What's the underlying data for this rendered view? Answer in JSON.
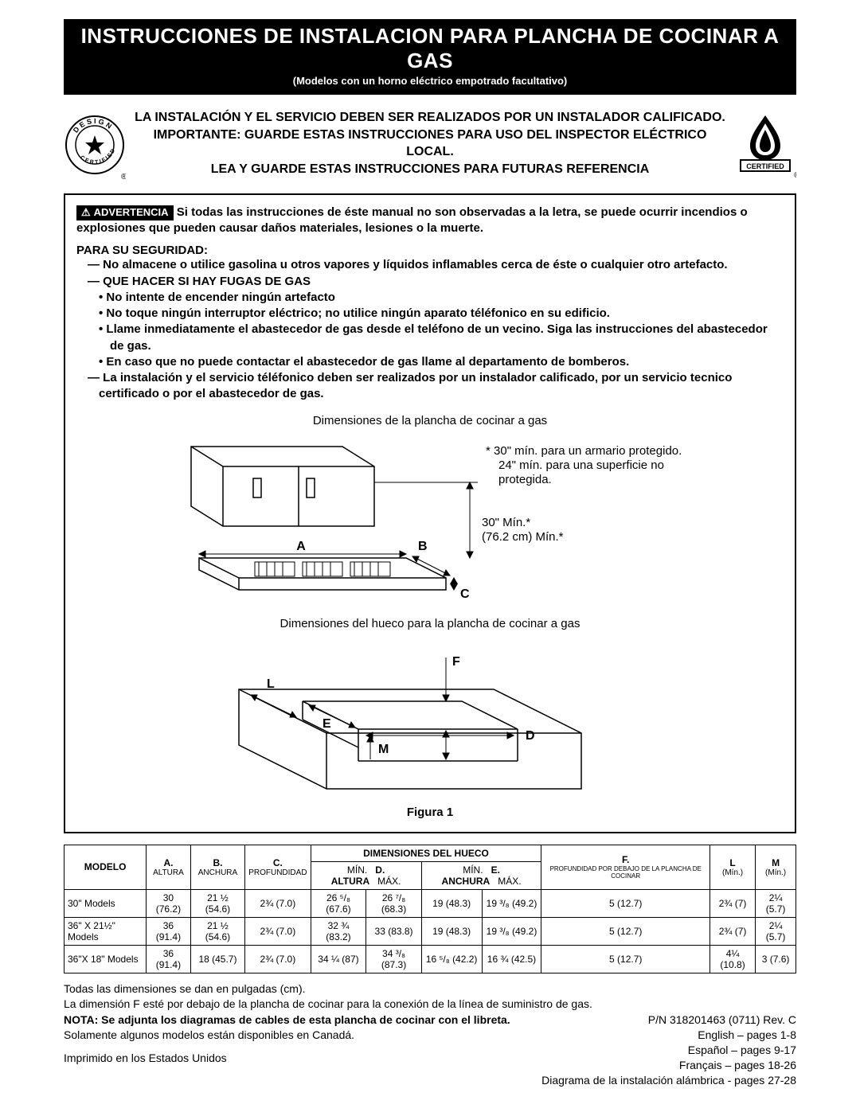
{
  "title": "INSTRUCCIONES DE INSTALACION PARA PLANCHA DE COCINAR A GAS",
  "subtitle": "(Modelos con un horno eléctrico empotrado facultativo)",
  "header_lines": [
    "LA INSTALACIÓN Y EL SERVICIO DEBEN SER REALIZADOS POR UN INSTALADOR CALIFICADO.",
    "IMPORTANTE: GUARDE ESTAS INSTRUCCIONES PARA USO DEL INSPECTOR ELÉCTRICO LOCAL.",
    "LEA Y GUARDE ESTAS INSTRUCCIONES PARA FUTURAS REFERENCIA"
  ],
  "left_seal_text": "DESIGN CERTIFIED",
  "right_seal_text": "CERTIFIED",
  "warning": {
    "label": "ADVERTENCIA",
    "intro": "Si todas las instrucciones de éste manual no son observadas a la letra, se puede ocurrir incendios o explosiones que pueden causar daños materiales, lesiones o la muerte.",
    "safety_heading": "PARA SU SEGURIDAD:",
    "items": [
      {
        "type": "dash",
        "text": "No almacene o utilice gasolina u otros vapores y líquidos inflamables cerca de éste o cualquier otro artefacto."
      },
      {
        "type": "dash",
        "text": "QUE HACER SI HAY FUGAS DE GAS"
      },
      {
        "type": "bullet",
        "text": "No intente de encender ningún artefacto"
      },
      {
        "type": "bullet",
        "text": "No toque ningún interruptor eléctrico; no utilice ningún aparato téléfonico en su edificio."
      },
      {
        "type": "bullet",
        "text": "Llame inmediatamente el abastecedor de gas desde el teléfono de un vecino. Siga las instrucciones del abastecedor de gas."
      },
      {
        "type": "bullet",
        "text": "En caso que no puede contactar el abastecedor de gas llame al departamento de bomberos."
      },
      {
        "type": "dash",
        "text": "La instalación y el servicio téléfonico deben ser realizados por un instalador calificado, por un servicio tecnico certificado o por el abastecedor de gas."
      }
    ]
  },
  "fig1": {
    "top_caption": "Dimensiones de la plancha de cocinar a gas",
    "side_note_1": "* 30\" mín. para un armario protegido.",
    "side_note_2": "24\" mín. para una superficie no protegida.",
    "clearance_1": "30\" Mín.*",
    "clearance_2": "(76.2 cm) Mín.*",
    "label_A": "A",
    "label_B": "B",
    "label_C": "C"
  },
  "fig2": {
    "top_caption": "Dimensiones del hueco para la plancha de cocinar a gas",
    "label_D": "D",
    "label_E": "E",
    "label_F": "F",
    "label_L": "L",
    "label_M": "M",
    "caption": "Figura 1"
  },
  "table": {
    "col_modelo": "MODELO",
    "col_A": "A.",
    "col_A_sub": "ALTURA",
    "col_B": "B.",
    "col_B_sub": "ANCHURA",
    "col_C": "C.",
    "col_C_sub": "PROFUNDIDAD",
    "col_hueco": "DIMENSIONES DEL HUECO",
    "col_D_min": "MÍN.",
    "col_D_mid": "D. ALTURA",
    "col_D_max": "MÁX.",
    "col_E_min": "MÍN.",
    "col_E_mid": "E. ANCHURA",
    "col_E_max": "MÁX.",
    "col_F": "F.",
    "col_F_sub": "PROFUNDIDAD POR DEBAJO DE LA PLANCHA DE COCINAR",
    "col_L": "L",
    "col_L_sub": "(Mín.)",
    "col_M": "M",
    "col_M_sub": "(Mín.)",
    "rows": [
      {
        "model": "30\" Models",
        "A": "30 (76.2)",
        "B": "21 ½ (54.6)",
        "C": "2¾ (7.0)",
        "Dmin": "26 ⁵/₈ (67.6)",
        "Dmax": "26 ⁷/₈ (68.3)",
        "Emin": "19 (48.3)",
        "Emax": "19 ³/₈ (49.2)",
        "F": "5 (12.7)",
        "L": "2¾ (7)",
        "M": "2¼ (5.7)"
      },
      {
        "model": "36\" X 21½\" Models",
        "A": "36 (91.4)",
        "B": "21 ½ (54.6)",
        "C": "2¾ (7.0)",
        "Dmin": "32 ¾ (83.2)",
        "Dmax": "33 (83.8)",
        "Emin": "19 (48.3)",
        "Emax": "19 ³/₈ (49.2)",
        "F": "5 (12.7)",
        "L": "2¾ (7)",
        "M": "2¼ (5.7)"
      },
      {
        "model": "36\"X 18\" Models",
        "A": "36 (91.4)",
        "B": "18 (45.7)",
        "C": "2¾ (7.0)",
        "Dmin": "34 ¼ (87)",
        "Dmax": "34 ³/₈ (87.3)",
        "Emin": "16 ⁵/₈ (42.2)",
        "Emax": "16 ¾ (42.5)",
        "F": "5 (12.7)",
        "L": "4¼ (10.8)",
        "M": "3 (7.6)"
      }
    ]
  },
  "footer": {
    "note1": "Todas las dimensiones se dan en pulgadas (cm).",
    "note2": "La dimensión F esté por debajo de la plancha de cocinar para la conexión de la línea de suministro de gas.",
    "note3_bold": "NOTA: Se adjunta los diagramas de cables de esta plancha de cocinar con el libreta.",
    "note4": "Solamente algunos modelos están disponibles en Canadá.",
    "printed": "Imprimido en los Estados Unidos",
    "pn": "P/N 318201463 (0711) Rev. C",
    "lang1": "English – pages 1-8",
    "lang2": "Español – pages 9-17",
    "lang3": "Français – pages 18-26",
    "lang4": "Diagrama de la instalación alámbrica - pages 27-28"
  }
}
